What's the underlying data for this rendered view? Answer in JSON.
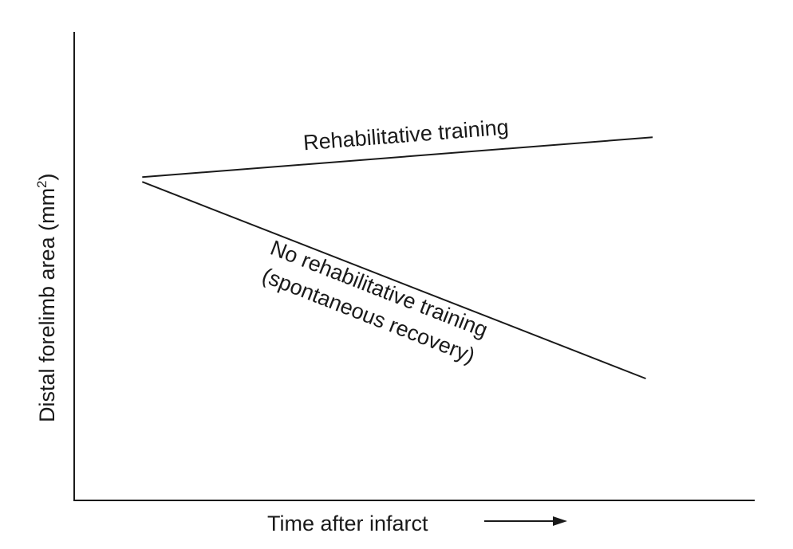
{
  "chart_data": {
    "type": "line",
    "title": "",
    "xlabel": "Time after infarct",
    "ylabel": "Distal forelimb area (mm",
    "ylabel_superscript": "2",
    "ylabel_close": ")",
    "xlim": [
      0,
      10
    ],
    "ylim": [
      0,
      10
    ],
    "grid": false,
    "legend": "none",
    "line_color": "#1a1a1a",
    "series": [
      {
        "name": "Rehabilitative training",
        "label_lines": [
          "Rehabilitative training"
        ],
        "x": [
          1,
          8.5
        ],
        "y": [
          6.9,
          7.75
        ]
      },
      {
        "name": "No rehabilitative training (spontaneous recovery)",
        "label_lines": [
          "No rehabilitative training",
          "(spontaneous recovery)"
        ],
        "x": [
          1,
          8.4
        ],
        "y": [
          6.8,
          2.6
        ]
      }
    ]
  }
}
